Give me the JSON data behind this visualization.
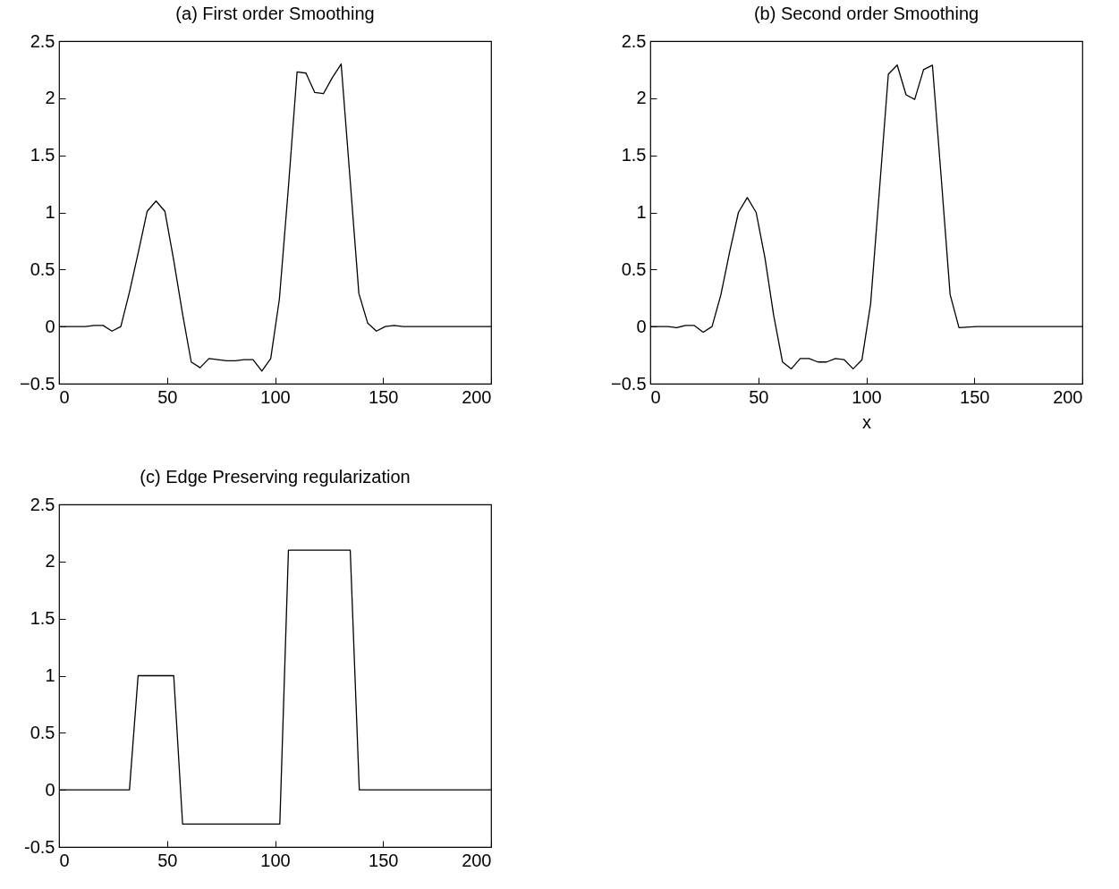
{
  "chart_data": [
    {
      "type": "line",
      "title": "(a) First order Smoothing",
      "xlim": [
        0,
        200
      ],
      "ylim": [
        -0.5,
        2.5
      ],
      "xticks": [
        0,
        50,
        100,
        150,
        200
      ],
      "yticks": [
        -0.5,
        0,
        0.5,
        1,
        1.5,
        2,
        2.5
      ],
      "grid": false,
      "x": [
        0,
        4.1,
        8.2,
        12.2,
        16.3,
        20.4,
        24.5,
        28.6,
        32.7,
        36.7,
        40.8,
        44.9,
        49,
        53.1,
        57.1,
        61.2,
        65.3,
        69.4,
        73.5,
        77.6,
        81.6,
        85.7,
        89.8,
        93.9,
        98,
        102,
        106.1,
        110.2,
        114.3,
        118.4,
        122.4,
        126.5,
        130.6,
        134.7,
        138.8,
        142.9,
        146.9,
        151,
        155.1,
        159.2,
        200
      ],
      "series": [
        {
          "color": "#000000",
          "values": [
            0,
            0,
            0,
            0,
            0.01,
            0.01,
            -0.04,
            0,
            0.31,
            0.65,
            1.01,
            1.1,
            1.01,
            0.58,
            0.12,
            -0.31,
            -0.36,
            -0.28,
            -0.29,
            -0.3,
            -0.3,
            -0.29,
            -0.29,
            -0.39,
            -0.28,
            0.24,
            1.2,
            2.23,
            2.22,
            2.05,
            2.04,
            2.18,
            2.3,
            1.3,
            0.29,
            0.03,
            -0.04,
            0,
            0.01,
            0,
            0
          ]
        }
      ]
    },
    {
      "type": "line",
      "title": "(b) Second order Smoothing",
      "xlabel": "x",
      "xlim": [
        0,
        200
      ],
      "ylim": [
        -0.5,
        2.5
      ],
      "xticks": [
        0,
        50,
        100,
        150,
        200
      ],
      "yticks": [
        -0.5,
        0,
        0.5,
        1,
        1.5,
        2,
        2.5
      ],
      "grid": false,
      "x": [
        0,
        4.1,
        8.2,
        12.2,
        16.3,
        20.4,
        24.5,
        28.6,
        32.7,
        36.7,
        40.8,
        44.9,
        49,
        53.1,
        57.1,
        61.2,
        65.3,
        69.4,
        73.5,
        77.6,
        81.6,
        85.7,
        89.8,
        93.9,
        98,
        102,
        106.1,
        110.2,
        114.3,
        118.4,
        122.4,
        126.5,
        130.6,
        134.7,
        138.8,
        142.9,
        151,
        200
      ],
      "series": [
        {
          "color": "#000000",
          "values": [
            0,
            0,
            0,
            -0.01,
            0.01,
            0.01,
            -0.05,
            0,
            0.28,
            0.65,
            1,
            1.13,
            1,
            0.6,
            0.1,
            -0.31,
            -0.37,
            -0.28,
            -0.28,
            -0.31,
            -0.31,
            -0.28,
            -0.29,
            -0.37,
            -0.29,
            0.2,
            1.2,
            2.21,
            2.29,
            2.03,
            1.99,
            2.25,
            2.29,
            1.3,
            0.28,
            -0.01,
            0,
            0
          ]
        }
      ]
    },
    {
      "type": "line",
      "title": "(c) Edge Preserving regularization",
      "xlim": [
        0,
        200
      ],
      "ylim": [
        -0.5,
        2.5
      ],
      "xticks": [
        0,
        50,
        100,
        150,
        200
      ],
      "yticks": [
        {
          "value": -0.5,
          "label": "-0.5"
        },
        0,
        0.5,
        1,
        1.5,
        2,
        2.5
      ],
      "grid": false,
      "x": [
        0,
        32.6,
        36.6,
        53.1,
        57.2,
        102.2,
        106.2,
        134.8,
        139,
        200
      ],
      "series": [
        {
          "color": "#000000",
          "values": [
            0,
            0,
            1,
            1,
            -0.3,
            -0.3,
            2.1,
            2.1,
            0,
            0
          ]
        }
      ]
    }
  ]
}
